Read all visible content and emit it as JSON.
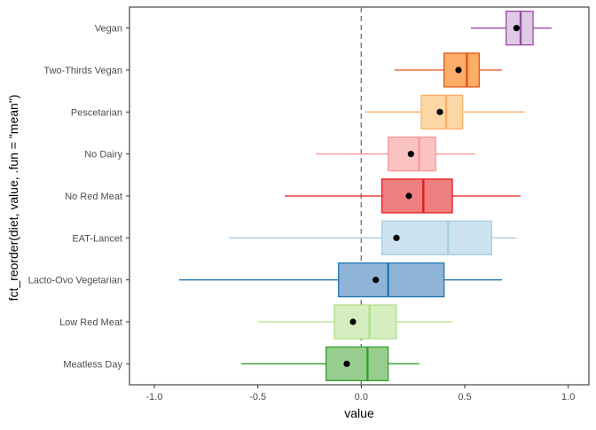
{
  "chart_data": {
    "type": "boxplot",
    "xlabel": "value",
    "ylabel": "fct_reorder(diet, value, .fun = \"mean\")",
    "xlim": [
      -1.12,
      1.1
    ],
    "x_ticks": [
      -1.0,
      -0.5,
      0,
      0.5,
      1.0
    ],
    "x_tick_labels": [
      "-1.0",
      "-0.5",
      "0.0",
      "0.5",
      "1.0"
    ],
    "reference_line": {
      "x": 0,
      "style": "dashed",
      "color": "#7f7f7f"
    },
    "grid": false,
    "legend": "none",
    "categories": [
      "Vegan",
      "Two-Thirds Vegan",
      "Pescetarian",
      "No Dairy",
      "No Red Meat",
      "EAT-Lancet",
      "Lacto-Ovo Vegetarian",
      "Low Red Meat",
      "Meatless Day"
    ],
    "boxes": [
      {
        "category": "Vegan",
        "whisker_low": 0.53,
        "q1": 0.7,
        "median": 0.77,
        "q3": 0.83,
        "whisker_high": 0.92,
        "mean": 0.75,
        "color": "#984ea3",
        "fill": "#decbe4"
      },
      {
        "category": "Two-Thirds Vegan",
        "whisker_low": 0.16,
        "q1": 0.4,
        "median": 0.51,
        "q3": 0.57,
        "whisker_high": 0.68,
        "mean": 0.47,
        "color": "#e6550d",
        "fill": "#fdae6b"
      },
      {
        "category": "Pescetarian",
        "whisker_low": 0.02,
        "q1": 0.29,
        "median": 0.41,
        "q3": 0.49,
        "whisker_high": 0.79,
        "mean": 0.38,
        "color": "#fdae6b",
        "fill": "#fdd8a7"
      },
      {
        "category": "No Dairy",
        "whisker_low": -0.22,
        "q1": 0.13,
        "median": 0.28,
        "q3": 0.36,
        "whisker_high": 0.55,
        "mean": 0.24,
        "color": "#fb9a99",
        "fill": "#fbc2c2"
      },
      {
        "category": "No Red Meat",
        "whisker_low": -0.37,
        "q1": 0.1,
        "median": 0.3,
        "q3": 0.44,
        "whisker_high": 0.77,
        "mean": 0.23,
        "color": "#e31a1c",
        "fill": "#f08080"
      },
      {
        "category": "EAT-Lancet",
        "whisker_low": -0.64,
        "q1": 0.1,
        "median": 0.42,
        "q3": 0.63,
        "whisker_high": 0.75,
        "mean": 0.17,
        "color": "#a6cee3",
        "fill": "#cce2ef"
      },
      {
        "category": "Lacto-Ovo Vegetarian",
        "whisker_low": -0.88,
        "q1": -0.11,
        "median": 0.13,
        "q3": 0.4,
        "whisker_high": 0.68,
        "mean": 0.07,
        "color": "#1f78b4",
        "fill": "#8fb4d8"
      },
      {
        "category": "Low Red Meat",
        "whisker_low": -0.5,
        "q1": -0.13,
        "median": 0.04,
        "q3": 0.17,
        "whisker_high": 0.44,
        "mean": -0.04,
        "color": "#b2df8a",
        "fill": "#d6eebf"
      },
      {
        "category": "Meatless Day",
        "whisker_low": -0.58,
        "q1": -0.17,
        "median": 0.03,
        "q3": 0.13,
        "whisker_high": 0.28,
        "mean": -0.07,
        "color": "#33a02c",
        "fill": "#99cc8f"
      }
    ]
  }
}
